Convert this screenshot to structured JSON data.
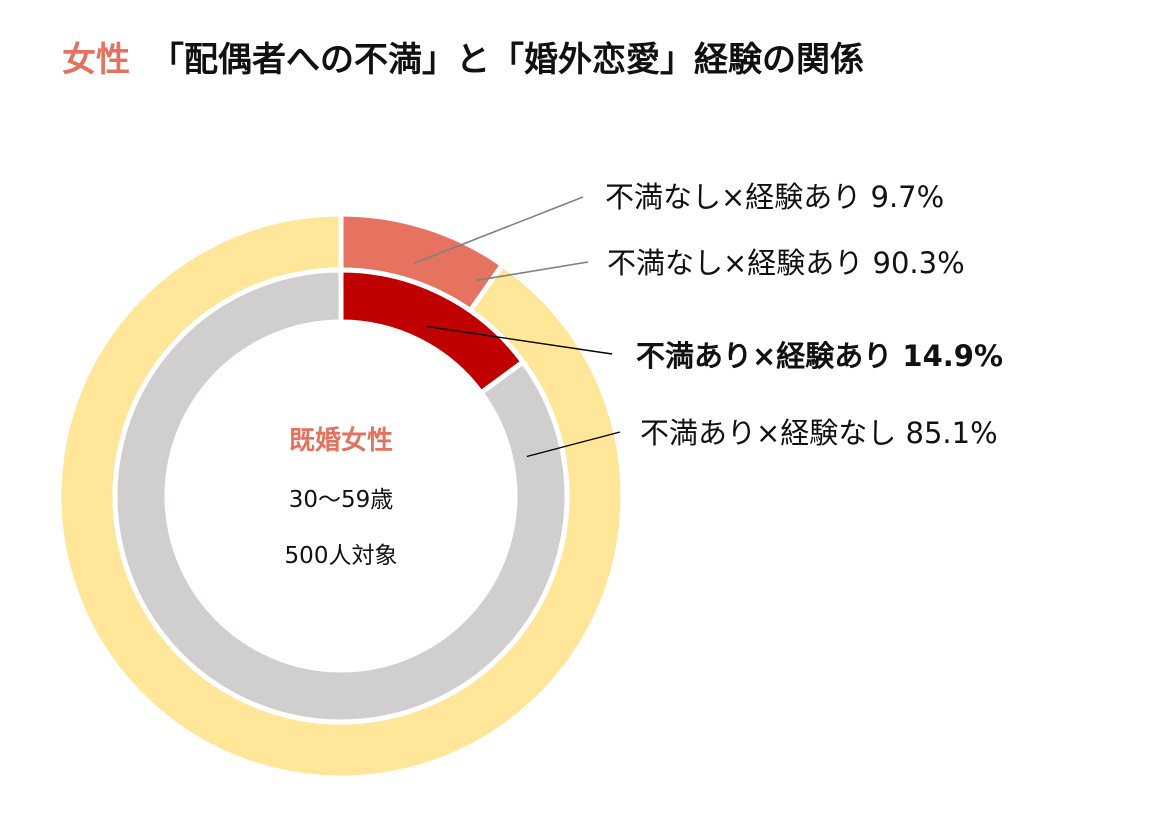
{
  "title": {
    "accent": "女性",
    "main": "「配偶者への不満」と「婚外恋愛」経験の関係"
  },
  "center": {
    "title": "既婚女性",
    "line1": "30〜59歳",
    "line2": "500人対象"
  },
  "chart_data": {
    "type": "pie",
    "title": "女性 「配偶者への不満」と「婚外恋愛」経験の関係",
    "rings": [
      {
        "ring": "outer",
        "slices": [
          {
            "label": "不満なし×経験あり 9.7%",
            "value": 9.7,
            "color": "#E57360"
          },
          {
            "label": "不満なし×経験あり 90.3%",
            "value": 90.3,
            "color": "#FFE699"
          }
        ]
      },
      {
        "ring": "inner",
        "slices": [
          {
            "label": "不満あり×経験あり 14.9%",
            "value": 14.9,
            "color": "#C00000",
            "bold": true
          },
          {
            "label": "不満あり×経験なし 85.1%",
            "value": 85.1,
            "color": "#D0CECE"
          }
        ]
      }
    ]
  }
}
